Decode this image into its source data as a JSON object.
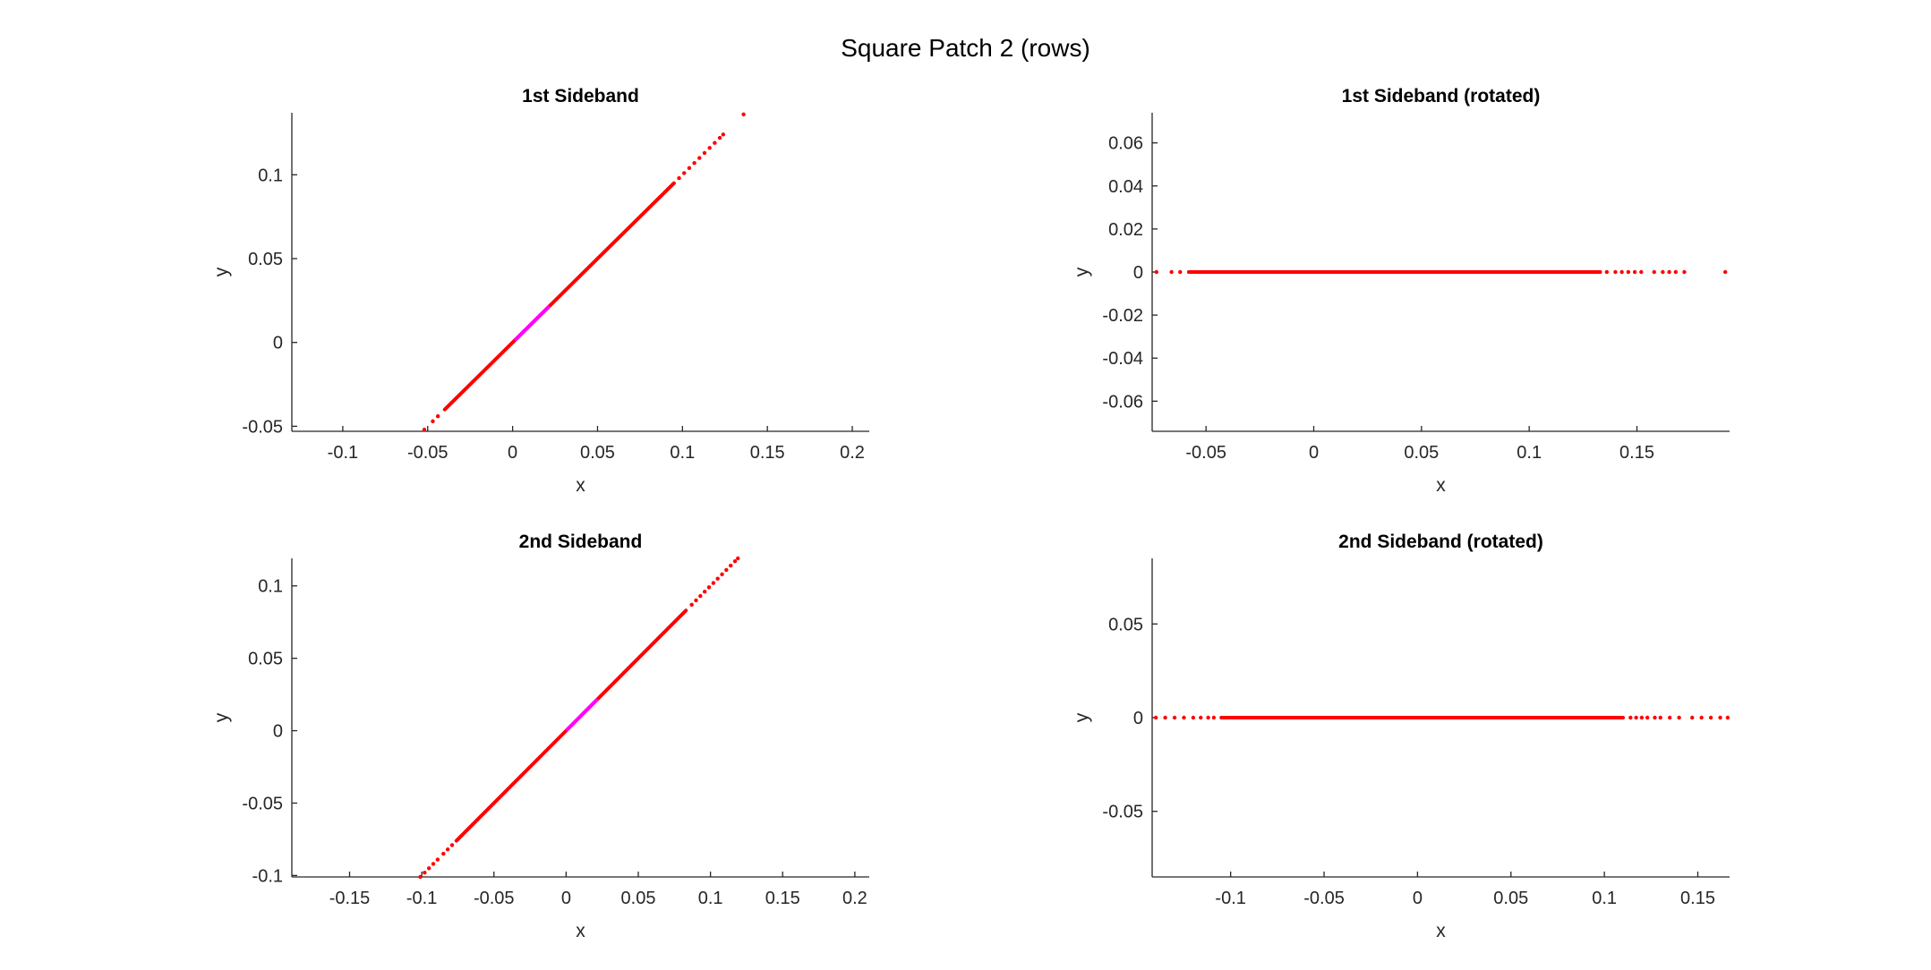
{
  "figure_title": "Square Patch 2 (rows)",
  "colors": {
    "main": "#ff0000",
    "highlight": "#ff00ff",
    "axis": "#262626"
  },
  "chart_data": [
    {
      "type": "scatter",
      "title": "1st Sideband",
      "xlabel": "x",
      "ylabel": "y",
      "xlim": [
        -0.13,
        0.21
      ],
      "ylim": [
        -0.053,
        0.137
      ],
      "xticks": [
        -0.1,
        -0.05,
        0,
        0.05,
        0.1,
        0.15,
        0.2
      ],
      "xtick_labels": [
        "-0.1",
        "-0.05",
        "0",
        "0.05",
        "0.1",
        "0.15",
        "0.2"
      ],
      "yticks": [
        -0.05,
        0,
        0.05,
        0.1
      ],
      "ytick_labels": [
        "-0.05",
        "0",
        "0.05",
        "0.1"
      ],
      "series": [
        {
          "color": "#ff0000",
          "segments": [
            [
              -0.04,
              -0.04,
              0.095,
              0.095
            ]
          ],
          "points": [
            [
              -0.052,
              -0.052
            ],
            [
              -0.047,
              -0.047
            ],
            [
              -0.044,
              -0.044
            ],
            [
              0.098,
              0.098
            ],
            [
              0.101,
              0.101
            ],
            [
              0.104,
              0.104
            ],
            [
              0.107,
              0.107
            ],
            [
              0.11,
              0.11
            ],
            [
              0.113,
              0.113
            ],
            [
              0.116,
              0.116
            ],
            [
              0.119,
              0.119
            ],
            [
              0.122,
              0.122
            ],
            [
              0.124,
              0.124
            ],
            [
              0.136,
              0.136
            ]
          ]
        },
        {
          "color": "#ff00ff",
          "segments": [
            [
              0.002,
              0.002,
              0.021,
              0.021
            ]
          ],
          "points": []
        }
      ]
    },
    {
      "type": "scatter",
      "title": "1st Sideband (rotated)",
      "xlabel": "x",
      "ylabel": "y",
      "xlim": [
        -0.075,
        0.193
      ],
      "ylim": [
        -0.074,
        0.074
      ],
      "xticks": [
        -0.05,
        0,
        0.05,
        0.1,
        0.15
      ],
      "xtick_labels": [
        "-0.05",
        "0",
        "0.05",
        "0.1",
        "0.15"
      ],
      "yticks": [
        -0.06,
        -0.04,
        -0.02,
        0,
        0.02,
        0.04,
        0.06
      ],
      "ytick_labels": [
        "-0.06",
        "-0.04",
        "-0.02",
        "0",
        "0.02",
        "0.04",
        "0.06"
      ],
      "series": [
        {
          "color": "#ff0000",
          "segments": [
            [
              -0.058,
              0,
              0.133,
              0
            ]
          ],
          "points": [
            [
              -0.073,
              0
            ],
            [
              -0.066,
              0
            ],
            [
              -0.062,
              0
            ],
            [
              0.136,
              0
            ],
            [
              0.14,
              0
            ],
            [
              0.143,
              0
            ],
            [
              0.146,
              0
            ],
            [
              0.149,
              0
            ],
            [
              0.152,
              0
            ],
            [
              0.158,
              0
            ],
            [
              0.162,
              0
            ],
            [
              0.165,
              0
            ],
            [
              0.168,
              0
            ],
            [
              0.172,
              0
            ],
            [
              0.191,
              0
            ]
          ]
        }
      ]
    },
    {
      "type": "scatter",
      "title": "2nd Sideband",
      "xlabel": "x",
      "ylabel": "y",
      "xlim": [
        -0.19,
        0.21
      ],
      "ylim": [
        -0.101,
        0.119
      ],
      "xticks": [
        -0.15,
        -0.1,
        -0.05,
        0,
        0.05,
        0.1,
        0.15,
        0.2
      ],
      "xtick_labels": [
        "-0.15",
        "-0.1",
        "-0.05",
        "0",
        "0.05",
        "0.1",
        "0.15",
        "0.2"
      ],
      "yticks": [
        -0.1,
        -0.05,
        0,
        0.05,
        0.1
      ],
      "ytick_labels": [
        "-0.1",
        "-0.05",
        "0",
        "0.05",
        "0.1"
      ],
      "series": [
        {
          "color": "#ff0000",
          "segments": [
            [
              -0.076,
              -0.076,
              0.083,
              0.083
            ]
          ],
          "points": [
            [
              -0.101,
              -0.101
            ],
            [
              -0.098,
              -0.098
            ],
            [
              -0.095,
              -0.095
            ],
            [
              -0.092,
              -0.092
            ],
            [
              -0.089,
              -0.089
            ],
            [
              -0.085,
              -0.085
            ],
            [
              -0.082,
              -0.082
            ],
            [
              -0.079,
              -0.079
            ],
            [
              0.087,
              0.087
            ],
            [
              0.09,
              0.09
            ],
            [
              0.093,
              0.093
            ],
            [
              0.096,
              0.096
            ],
            [
              0.099,
              0.099
            ],
            [
              0.102,
              0.102
            ],
            [
              0.105,
              0.105
            ],
            [
              0.108,
              0.108
            ],
            [
              0.111,
              0.111
            ],
            [
              0.114,
              0.114
            ],
            [
              0.117,
              0.117
            ],
            [
              0.119,
              0.119
            ]
          ]
        },
        {
          "color": "#ff00ff",
          "segments": [
            [
              0.001,
              0.001,
              0.021,
              0.021
            ]
          ],
          "points": []
        }
      ]
    },
    {
      "type": "scatter",
      "title": "2nd Sideband (rotated)",
      "xlabel": "x",
      "ylabel": "y",
      "xlim": [
        -0.142,
        0.167
      ],
      "ylim": [
        -0.085,
        0.085
      ],
      "xticks": [
        -0.1,
        -0.05,
        0,
        0.05,
        0.1,
        0.15
      ],
      "xtick_labels": [
        "-0.1",
        "-0.05",
        "0",
        "0.05",
        "0.1",
        "0.15"
      ],
      "yticks": [
        -0.05,
        0,
        0.05
      ],
      "ytick_labels": [
        "-0.05",
        "0",
        "0.05"
      ],
      "series": [
        {
          "color": "#ff0000",
          "segments": [
            [
              -0.105,
              0,
              0.11,
              0
            ]
          ],
          "points": [
            [
              -0.14,
              0
            ],
            [
              -0.135,
              0
            ],
            [
              -0.13,
              0
            ],
            [
              -0.125,
              0
            ],
            [
              -0.12,
              0
            ],
            [
              -0.116,
              0
            ],
            [
              -0.112,
              0
            ],
            [
              -0.109,
              0
            ],
            [
              0.114,
              0
            ],
            [
              0.117,
              0
            ],
            [
              0.12,
              0
            ],
            [
              0.123,
              0
            ],
            [
              0.127,
              0
            ],
            [
              0.13,
              0
            ],
            [
              0.135,
              0
            ],
            [
              0.14,
              0
            ],
            [
              0.147,
              0
            ],
            [
              0.152,
              0
            ],
            [
              0.157,
              0
            ],
            [
              0.162,
              0
            ],
            [
              0.166,
              0
            ]
          ]
        }
      ]
    }
  ]
}
